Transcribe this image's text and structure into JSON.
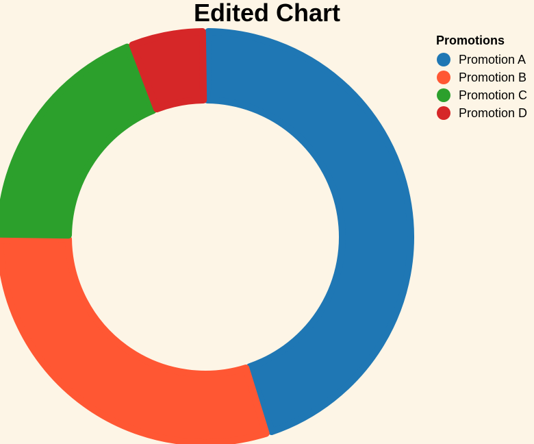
{
  "chart_data": {
    "type": "pie",
    "title": "Edited Chart",
    "legend_title": "Promotions",
    "legend_position": "top-right",
    "donut": true,
    "categories": [
      "Promotion A",
      "Promotion B",
      "Promotion C",
      "Promotion D"
    ],
    "values": [
      45,
      30,
      19,
      6
    ],
    "colors": [
      "#1f77b4",
      "#ff5733",
      "#2ca02c",
      "#d62728"
    ]
  }
}
